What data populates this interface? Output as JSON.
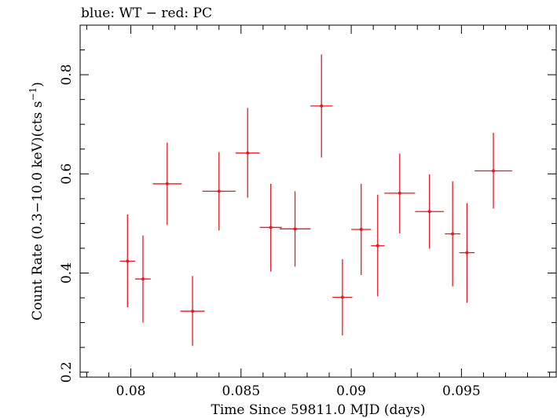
{
  "header_text": "blue: WT − red: PC",
  "chart_data": {
    "type": "scatter",
    "xlabel": "Time Since 59811.0 MJD (days)",
    "ylabel_main": "Count Rate (0.3−10.0 keV)(cts s",
    "ylabel_sup": "−1",
    "ylabel_end": ")",
    "xlim": [
      0.0777,
      0.0993
    ],
    "ylim": [
      0.19,
      0.9
    ],
    "xticks": [
      {
        "value": 0.08,
        "label": "0.08"
      },
      {
        "value": 0.085,
        "label": "0.085"
      },
      {
        "value": 0.09,
        "label": "0.09"
      },
      {
        "value": 0.095,
        "label": "0.095"
      }
    ],
    "yticks": [
      {
        "value": 0.2,
        "label": "0.2"
      },
      {
        "value": 0.4,
        "label": "0.4"
      },
      {
        "value": 0.6,
        "label": "0.6"
      },
      {
        "value": 0.8,
        "label": "0.8"
      }
    ],
    "grid": false,
    "series": [
      {
        "color": "#e8191e",
        "points": [
          {
            "x": 0.07985,
            "xlo": 0.0795,
            "xhi": 0.0802,
            "y": 0.424,
            "ylo": 0.331,
            "yhi": 0.518
          },
          {
            "x": 0.08055,
            "xlo": 0.0802,
            "xhi": 0.0809,
            "y": 0.388,
            "ylo": 0.3,
            "yhi": 0.476
          },
          {
            "x": 0.08165,
            "xlo": 0.081,
            "xhi": 0.0823,
            "y": 0.58,
            "ylo": 0.497,
            "yhi": 0.663
          },
          {
            "x": 0.0828,
            "xlo": 0.08225,
            "xhi": 0.08335,
            "y": 0.323,
            "ylo": 0.253,
            "yhi": 0.394
          },
          {
            "x": 0.084,
            "xlo": 0.08325,
            "xhi": 0.08475,
            "y": 0.565,
            "ylo": 0.486,
            "yhi": 0.644
          },
          {
            "x": 0.0853,
            "xlo": 0.08475,
            "xhi": 0.08585,
            "y": 0.642,
            "ylo": 0.552,
            "yhi": 0.733
          },
          {
            "x": 0.08635,
            "xlo": 0.08585,
            "xhi": 0.08685,
            "y": 0.492,
            "ylo": 0.403,
            "yhi": 0.58
          },
          {
            "x": 0.08745,
            "xlo": 0.08675,
            "xhi": 0.08815,
            "y": 0.489,
            "ylo": 0.413,
            "yhi": 0.565
          },
          {
            "x": 0.08865,
            "xlo": 0.08815,
            "xhi": 0.08915,
            "y": 0.737,
            "ylo": 0.633,
            "yhi": 0.841
          },
          {
            "x": 0.0896,
            "xlo": 0.08915,
            "xhi": 0.09005,
            "y": 0.351,
            "ylo": 0.274,
            "yhi": 0.428
          },
          {
            "x": 0.09045,
            "xlo": 0.09,
            "xhi": 0.0909,
            "y": 0.488,
            "ylo": 0.396,
            "yhi": 0.58
          },
          {
            "x": 0.0912,
            "xlo": 0.0909,
            "xhi": 0.0915,
            "y": 0.455,
            "ylo": 0.353,
            "yhi": 0.558
          },
          {
            "x": 0.0922,
            "xlo": 0.0915,
            "xhi": 0.0929,
            "y": 0.561,
            "ylo": 0.48,
            "yhi": 0.641
          },
          {
            "x": 0.09355,
            "xlo": 0.0929,
            "xhi": 0.0942,
            "y": 0.524,
            "ylo": 0.449,
            "yhi": 0.599
          },
          {
            "x": 0.0946,
            "xlo": 0.09425,
            "xhi": 0.09495,
            "y": 0.479,
            "ylo": 0.373,
            "yhi": 0.585
          },
          {
            "x": 0.09525,
            "xlo": 0.0949,
            "xhi": 0.0956,
            "y": 0.441,
            "ylo": 0.34,
            "yhi": 0.541
          },
          {
            "x": 0.09645,
            "xlo": 0.0956,
            "xhi": 0.0973,
            "y": 0.606,
            "ylo": 0.53,
            "yhi": 0.683
          }
        ]
      }
    ]
  }
}
